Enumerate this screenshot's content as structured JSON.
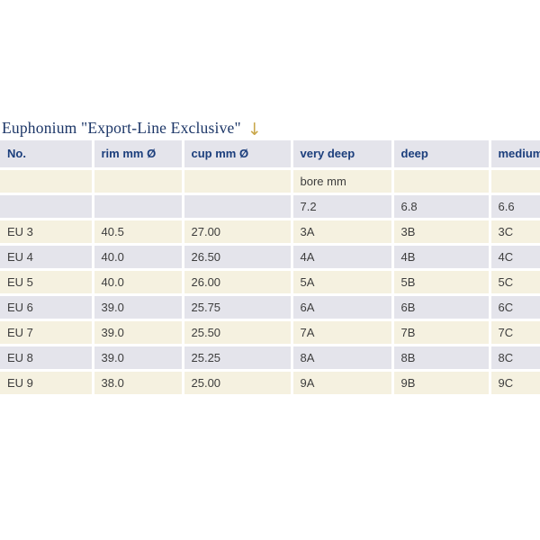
{
  "title": {
    "text": "Euphonium \"Export-Line Exclusive\"",
    "arrow": "↓",
    "text_color": "#1c3667",
    "arrow_color": "#c9a74b"
  },
  "table": {
    "header": [
      "No.",
      "rim mm Ø",
      "cup mm Ø",
      "very deep",
      "deep",
      "medium"
    ],
    "rows": [
      [
        "",
        "",
        "",
        "bore mm",
        "",
        ""
      ],
      [
        "",
        "",
        "",
        "7.2",
        "6.8",
        "6.6"
      ],
      [
        "EU 3",
        "40.5",
        "27.00",
        "3A",
        "3B",
        "3C"
      ],
      [
        "EU 4",
        "40.0",
        "26.50",
        "4A",
        "4B",
        "4C"
      ],
      [
        "EU 5",
        "40.0",
        "26.00",
        "5A",
        "5B",
        "5C"
      ],
      [
        "EU 6",
        "39.0",
        "25.75",
        "6A",
        "6B",
        "6C"
      ],
      [
        "EU 7",
        "39.0",
        "25.50",
        "7A",
        "7B",
        "7C"
      ],
      [
        "EU 8",
        "39.0",
        "25.25",
        "8A",
        "8B",
        "8C"
      ],
      [
        "EU 9",
        "38.0",
        "25.00",
        "9A",
        "9B",
        "9C"
      ]
    ],
    "colors": {
      "header_bg": "#e4e4eb",
      "row_gray_bg": "#e4e4eb",
      "row_cream_bg": "#f5f1e0",
      "header_text": "#1b3e7c",
      "body_text": "#3d3d3d"
    }
  }
}
